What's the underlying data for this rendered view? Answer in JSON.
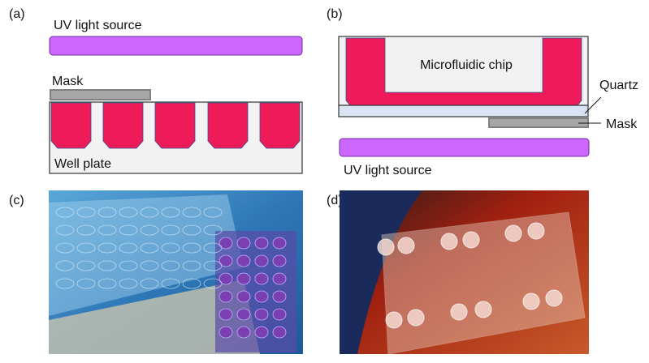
{
  "panels": {
    "a": {
      "label": "(a)",
      "uv_label": "UV light source",
      "mask_label": "Mask",
      "plate_label": "Well plate"
    },
    "b": {
      "label": "(b)",
      "chip_label": "Microfluidic chip",
      "quartz_label": "Quartz",
      "mask_label": "Mask",
      "uv_label": "UV light source"
    },
    "c": {
      "label": "(c)"
    },
    "d": {
      "label": "(d)"
    }
  },
  "colors": {
    "uv": "#cc66ff",
    "well_fill": "#ee1a5a",
    "plate": "#f2f2f2",
    "mask": "#a6a6a6",
    "quartz": "#dae3f3"
  }
}
